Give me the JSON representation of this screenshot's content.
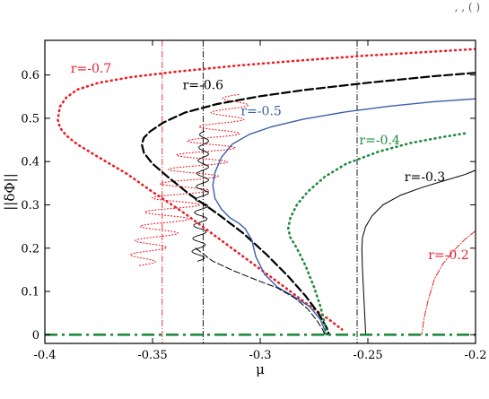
{
  "chart_data": {
    "type": "line",
    "title": "",
    "xlabel": "μ",
    "ylabel": "||δΦ||",
    "xlim": [
      -0.4,
      -0.2
    ],
    "ylim": [
      -0.02,
      0.68
    ],
    "grid": false,
    "corner_fragment": ", , (    )",
    "x_ticks": [
      {
        "value": -0.4,
        "label": "-0.4"
      },
      {
        "value": -0.35,
        "label": "-0.35"
      },
      {
        "value": -0.3,
        "label": "-0.3"
      },
      {
        "value": -0.25,
        "label": "-0.25"
      },
      {
        "value": -0.2,
        "label": "-0.2"
      }
    ],
    "y_ticks": [
      {
        "value": 0,
        "label": "0"
      },
      {
        "value": 0.1,
        "label": "0.1"
      },
      {
        "value": 0.2,
        "label": "0.2"
      },
      {
        "value": 0.3,
        "label": "0.3"
      },
      {
        "value": 0.4,
        "label": "0.4"
      },
      {
        "value": 0.5,
        "label": "0.5"
      },
      {
        "value": 0.6,
        "label": "0.6"
      }
    ],
    "reference_lines": [
      {
        "x": -0.3455,
        "color": "#e8202a",
        "dash": "7,2,1,2",
        "width": 0.9
      },
      {
        "x": -0.3265,
        "color": "#000000",
        "dash": "7,2,1,2",
        "width": 0.9
      },
      {
        "x": -0.255,
        "color": "#000000",
        "dash": "7,2,1,2",
        "width": 0.9
      }
    ],
    "baseline": {
      "y": 0,
      "color": "#1e8a3c",
      "dash": "14,5,3,5",
      "width": 2.6
    },
    "series": [
      {
        "name": "r=-0.7",
        "color": "#e8202a",
        "dash": "1,4.5",
        "width": 2.6,
        "label_pos": [
          -0.388,
          0.605
        ],
        "x": [
          -0.2,
          -0.22,
          -0.25,
          -0.28,
          -0.31,
          -0.34,
          -0.36,
          -0.375,
          -0.385,
          -0.39,
          -0.393,
          -0.394,
          -0.393,
          -0.39,
          -0.385,
          -0.375,
          -0.362,
          -0.35,
          -0.335,
          -0.32,
          -0.305,
          -0.29,
          -0.278,
          -0.268,
          -0.262
        ],
        "y": [
          0.66,
          0.654,
          0.645,
          0.634,
          0.622,
          0.607,
          0.595,
          0.582,
          0.566,
          0.548,
          0.527,
          0.497,
          0.478,
          0.46,
          0.44,
          0.41,
          0.372,
          0.33,
          0.28,
          0.225,
          0.17,
          0.115,
          0.07,
          0.035,
          0.012
        ]
      },
      {
        "name": "r=-0.6",
        "color": "#000000",
        "dash": "9,4",
        "width": 2.2,
        "label_pos": [
          -0.336,
          0.567
        ],
        "x": [
          -0.2,
          -0.22,
          -0.25,
          -0.28,
          -0.3,
          -0.32,
          -0.335,
          -0.345,
          -0.351,
          -0.354,
          -0.355,
          -0.354,
          -0.35,
          -0.343,
          -0.333,
          -0.32,
          -0.308,
          -0.297,
          -0.287,
          -0.279,
          -0.273,
          -0.269,
          -0.268
        ],
        "y": [
          0.605,
          0.597,
          0.582,
          0.565,
          0.551,
          0.533,
          0.513,
          0.49,
          0.47,
          0.455,
          0.44,
          0.42,
          0.395,
          0.365,
          0.325,
          0.28,
          0.235,
          0.185,
          0.135,
          0.09,
          0.05,
          0.015,
          0.0
        ]
      },
      {
        "name": "r=-0.5",
        "color": "#3a5fa8",
        "dash": "",
        "width": 1.4,
        "label_pos": [
          -0.309,
          0.507
        ],
        "x": [
          -0.2,
          -0.22,
          -0.24,
          -0.26,
          -0.28,
          -0.295,
          -0.305,
          -0.313,
          -0.318,
          -0.321,
          -0.322,
          -0.321,
          -0.318,
          -0.314,
          -0.31,
          -0.307,
          -0.304,
          -0.302,
          -0.298,
          -0.292,
          -0.285,
          -0.277,
          -0.272,
          -0.27,
          -0.27
        ],
        "y": [
          0.545,
          0.538,
          0.528,
          0.515,
          0.498,
          0.48,
          0.463,
          0.44,
          0.41,
          0.375,
          0.345,
          0.315,
          0.29,
          0.27,
          0.258,
          0.245,
          0.22,
          0.18,
          0.14,
          0.11,
          0.09,
          0.065,
          0.035,
          0.01,
          0.0
        ]
      },
      {
        "name": "r=-0.4",
        "color": "#1e8a3c",
        "dash": "1,4.5",
        "width": 2.6,
        "label_pos": [
          -0.254,
          0.44
        ],
        "x": [
          -0.205,
          -0.215,
          -0.23,
          -0.245,
          -0.26,
          -0.27,
          -0.278,
          -0.283,
          -0.286,
          -0.287,
          -0.286,
          -0.283,
          -0.279,
          -0.275,
          -0.272,
          -0.27,
          -0.269
        ],
        "y": [
          0.465,
          0.457,
          0.443,
          0.423,
          0.395,
          0.365,
          0.33,
          0.3,
          0.27,
          0.245,
          0.225,
          0.2,
          0.16,
          0.11,
          0.065,
          0.025,
          0.0
        ]
      },
      {
        "name": "r=-0.3",
        "color": "#000000",
        "dash": "",
        "width": 1.0,
        "label_pos": [
          -0.233,
          0.355
        ],
        "x": [
          -0.2,
          -0.205,
          -0.215,
          -0.225,
          -0.235,
          -0.243,
          -0.248,
          -0.251,
          -0.2525,
          -0.2528,
          -0.2525,
          -0.252,
          -0.2515,
          -0.251
        ],
        "y": [
          0.38,
          0.37,
          0.355,
          0.34,
          0.322,
          0.3,
          0.275,
          0.25,
          0.225,
          0.2,
          0.15,
          0.1,
          0.05,
          0.0
        ]
      },
      {
        "name": "r=-0.2",
        "color": "#e8202a",
        "dash": "7,2,1,2",
        "width": 1.0,
        "label_pos": [
          -0.222,
          0.175
        ],
        "x": [
          -0.2,
          -0.205,
          -0.21,
          -0.215,
          -0.219,
          -0.222,
          -0.224,
          -0.225
        ],
        "y": [
          0.24,
          0.22,
          0.195,
          0.165,
          0.13,
          0.08,
          0.035,
          0.0
        ]
      },
      {
        "name": "",
        "color": "#000000",
        "dash": "7,3",
        "width": 1.0,
        "label_pos": null,
        "x": [
          -0.33,
          -0.322,
          -0.312,
          -0.302,
          -0.292,
          -0.284,
          -0.278,
          -0.274,
          -0.271,
          -0.27
        ],
        "y": [
          0.2,
          0.17,
          0.147,
          0.127,
          0.108,
          0.085,
          0.06,
          0.035,
          0.012,
          0.0
        ]
      }
    ],
    "oscillations": [
      {
        "color": "#e8202a",
        "dash": "1,2.5",
        "width": 1.1,
        "x_center": [
          -0.356,
          -0.341,
          -0.325,
          -0.31
        ],
        "amplitude": [
          0.006,
          0.012,
          0.013,
          0.006
        ],
        "y_range": [
          0.16,
          0.555
        ],
        "cycles": 12
      },
      {
        "color": "#000000",
        "dash": "",
        "width": 0.9,
        "x_center": [
          -0.329,
          -0.327,
          -0.326
        ],
        "amplitude": [
          0.003,
          0.003,
          0.002
        ],
        "y_range": [
          0.17,
          0.47
        ],
        "cycles": 10
      }
    ]
  }
}
